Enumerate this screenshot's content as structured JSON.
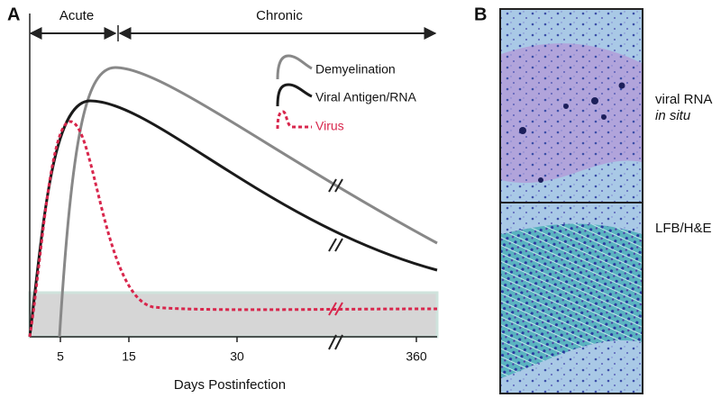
{
  "panel_a": {
    "label": "A",
    "phases": [
      "Acute",
      "Chronic"
    ],
    "legend": [
      "Demyelination",
      "Viral Antigen/RNA",
      "Virus"
    ],
    "x_ticks": [
      "5",
      "15",
      "30",
      "360"
    ],
    "x_label": "Days Postinfection"
  },
  "panel_b": {
    "label": "B",
    "top_label": [
      "viral RNA",
      "in situ"
    ],
    "bottom_label": "LFB/H&E"
  }
}
